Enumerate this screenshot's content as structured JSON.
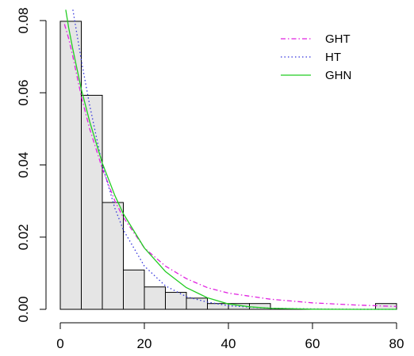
{
  "chart_data": {
    "type": "bar",
    "title": "",
    "xlabel": "",
    "ylabel": "",
    "xlim": [
      0,
      80
    ],
    "ylim": [
      0,
      0.08
    ],
    "x_ticks": [
      0,
      20,
      40,
      60,
      80
    ],
    "x_tick_labels": [
      "0",
      "20",
      "40",
      "60",
      "80"
    ],
    "y_ticks": [
      0.0,
      0.02,
      0.04,
      0.06,
      0.08
    ],
    "y_tick_labels": [
      "0.00",
      "0.02",
      "0.04",
      "0.06",
      "0.08"
    ],
    "grid": false,
    "legend_position": "top-right",
    "histogram": {
      "bin_edges": [
        0,
        5,
        10,
        15,
        20,
        25,
        30,
        35,
        40,
        45,
        50,
        55,
        60,
        65,
        70,
        75,
        80
      ],
      "densities": [
        0.0798,
        0.0593,
        0.0296,
        0.0109,
        0.0062,
        0.0047,
        0.0031,
        0.0016,
        0.0016,
        0.0016,
        0,
        0,
        0,
        0,
        0,
        0.0016
      ],
      "fill": "#e5e5e5",
      "stroke": "#000000"
    },
    "series": [
      {
        "name": "GHT",
        "type": "line",
        "color": "#e020e0",
        "dash": "dot-dash",
        "x": [
          1,
          2,
          3,
          5,
          7,
          10,
          13,
          15,
          20,
          25,
          30,
          35,
          40,
          50,
          60,
          70,
          80
        ],
        "y": [
          0.079,
          0.075,
          0.07,
          0.059,
          0.05,
          0.039,
          0.03,
          0.0255,
          0.017,
          0.012,
          0.0085,
          0.006,
          0.0045,
          0.0028,
          0.0018,
          0.0012,
          0.0008
        ]
      },
      {
        "name": "HT",
        "type": "line",
        "color": "#3333dd",
        "dash": "dotted",
        "x": [
          3,
          4,
          5,
          7,
          10,
          13,
          15,
          20,
          25,
          30,
          35,
          40,
          45,
          50,
          60,
          70,
          80
        ],
        "y": [
          0.083,
          0.076,
          0.069,
          0.0565,
          0.04,
          0.028,
          0.022,
          0.012,
          0.0065,
          0.0035,
          0.002,
          0.001,
          0.0006,
          0.0003,
          0.0001,
          3e-05,
          1e-05
        ]
      },
      {
        "name": "GHN",
        "type": "line",
        "color": "#22cc22",
        "dash": "solid",
        "x": [
          1.3,
          2,
          3,
          5,
          7,
          10,
          13,
          15,
          20,
          25,
          30,
          35,
          40,
          45,
          50,
          60,
          70,
          80
        ],
        "y": [
          0.083,
          0.078,
          0.072,
          0.061,
          0.052,
          0.0405,
          0.0315,
          0.0265,
          0.017,
          0.0105,
          0.006,
          0.0032,
          0.0015,
          0.0007,
          0.0003,
          5e-05,
          1e-05,
          0
        ]
      }
    ]
  }
}
